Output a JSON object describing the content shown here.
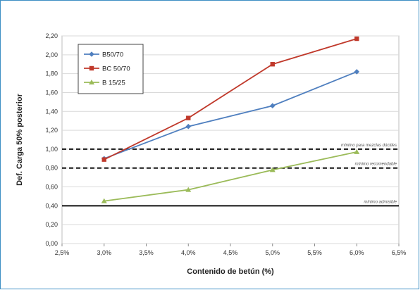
{
  "chart_data": {
    "type": "line",
    "xlabel": "Contenido de betún (%)",
    "ylabel": "Def. Carga 50% posterior",
    "x_ticks": [
      "2,5%",
      "3,0%",
      "3,5%",
      "4,0%",
      "4,5%",
      "5,0%",
      "5,5%",
      "6,0%",
      "6,5%"
    ],
    "y_ticks": [
      "0,00",
      "0,20",
      "0,40",
      "0,60",
      "0,80",
      "1,00",
      "1,20",
      "1,40",
      "1,60",
      "1,80",
      "2,00",
      "2,20"
    ],
    "xlim": [
      2.5,
      6.5
    ],
    "ylim": [
      0,
      2.2
    ],
    "grid": true,
    "legend_position": "top-left",
    "x": [
      3.0,
      4.0,
      5.0,
      6.0
    ],
    "series": [
      {
        "name": "B50/70",
        "color": "#4f7fbf",
        "marker": "diamond",
        "x": [
          3.0,
          4.0,
          5.0,
          6.0
        ],
        "values": [
          0.9,
          1.24,
          1.46,
          1.82
        ]
      },
      {
        "name": "BC 50/70",
        "color": "#c0392b",
        "marker": "square",
        "x": [
          3.0,
          4.0,
          5.0,
          6.0
        ],
        "values": [
          0.89,
          1.33,
          1.9,
          2.17
        ]
      },
      {
        "name": "B 15/25",
        "color": "#9bbb59",
        "marker": "triangle",
        "x": [
          3.0,
          4.0,
          5.0,
          6.0
        ],
        "values": [
          0.45,
          0.57,
          0.78,
          0.97
        ]
      }
    ],
    "reference_lines": [
      {
        "value": 1.0,
        "style": "dashed",
        "label": "mínimo para mezclas dúctiles"
      },
      {
        "value": 0.8,
        "style": "dashed",
        "label": "mínimo recomendable"
      },
      {
        "value": 0.4,
        "style": "solid",
        "label": "mínimo admisible"
      }
    ]
  }
}
